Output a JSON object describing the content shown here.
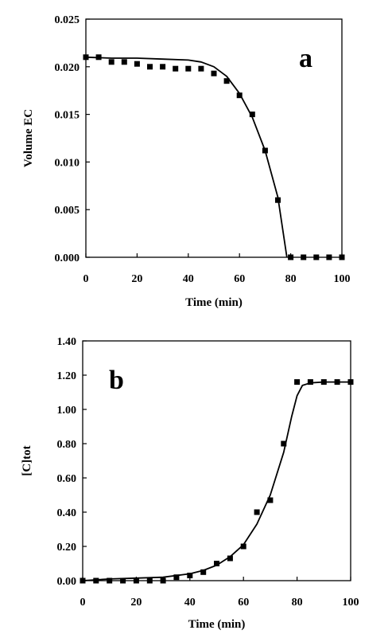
{
  "chart_data": [
    {
      "type": "scatter",
      "panel_label": "a",
      "xlabel": "Time  (min)",
      "ylabel": "Volume  EC",
      "xlim": [
        0,
        100
      ],
      "ylim": [
        0,
        0.025
      ],
      "xticks": [
        "0",
        "20",
        "40",
        "60",
        "80",
        "100"
      ],
      "yticks": [
        "0.000",
        "0.005",
        "0.010",
        "0.015",
        "0.020",
        "0.025"
      ],
      "grid": false,
      "series": [
        {
          "kind": "markers",
          "x": [
            0,
            5,
            10,
            15,
            20,
            25,
            30,
            35,
            40,
            45,
            50,
            55,
            60,
            65,
            70,
            75,
            80,
            85,
            90,
            95,
            100
          ],
          "y": [
            0.021,
            0.021,
            0.0205,
            0.0205,
            0.0203,
            0.02,
            0.02,
            0.0198,
            0.0198,
            0.0198,
            0.0193,
            0.0185,
            0.017,
            0.015,
            0.0112,
            0.006,
            0.0,
            0.0,
            0.0,
            0.0,
            0.0
          ]
        },
        {
          "kind": "line",
          "x": [
            0,
            10,
            20,
            30,
            40,
            45,
            50,
            55,
            60,
            65,
            70,
            75,
            78.5
          ],
          "y": [
            0.021,
            0.0209,
            0.0209,
            0.0208,
            0.0207,
            0.0205,
            0.02,
            0.019,
            0.0172,
            0.0147,
            0.0112,
            0.0063,
            0.0
          ]
        }
      ]
    },
    {
      "type": "scatter",
      "panel_label": "b",
      "xlabel": "Time  (min)",
      "ylabel": "[C]tot",
      "xlim": [
        0,
        100
      ],
      "ylim": [
        0,
        1.4
      ],
      "xticks": [
        "0",
        "20",
        "40",
        "60",
        "80",
        "100"
      ],
      "yticks": [
        "0.00",
        "0.20",
        "0.40",
        "0.60",
        "0.80",
        "1.00",
        "1.20",
        "1.40"
      ],
      "grid": false,
      "series": [
        {
          "kind": "markers",
          "x": [
            0,
            5,
            10,
            15,
            20,
            25,
            30,
            35,
            40,
            45,
            50,
            55,
            60,
            65,
            70,
            75,
            80,
            85,
            90,
            95,
            100
          ],
          "y": [
            0.0,
            0.0,
            0.0,
            0.0,
            0.0,
            0.0,
            0.0,
            0.02,
            0.03,
            0.05,
            0.1,
            0.13,
            0.2,
            0.4,
            0.47,
            0.8,
            1.16,
            1.16,
            1.16,
            1.16,
            1.16
          ]
        },
        {
          "kind": "line",
          "x": [
            0,
            10,
            20,
            30,
            40,
            45,
            50,
            55,
            60,
            65,
            70,
            75,
            78,
            80,
            82,
            85,
            90,
            100
          ],
          "y": [
            0.0,
            0.01,
            0.015,
            0.02,
            0.04,
            0.06,
            0.09,
            0.14,
            0.21,
            0.33,
            0.5,
            0.75,
            0.96,
            1.08,
            1.14,
            1.155,
            1.16,
            1.16
          ]
        }
      ]
    }
  ]
}
